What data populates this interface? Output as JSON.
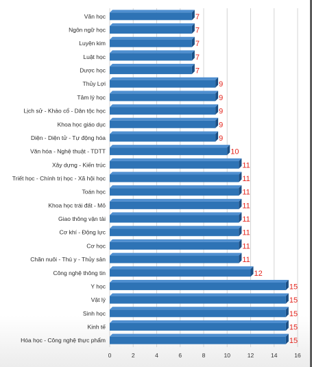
{
  "colors": {
    "bar": "#2e73b5",
    "bar_top": "#4f8fd0",
    "bar_side": "#1b4f85",
    "value_label": "#e3231b",
    "grid": "#d4d4d4"
  },
  "chart_data": {
    "type": "bar",
    "orientation": "horizontal",
    "categories": [
      "Văn học",
      "Ngôn ngữ học",
      "Luyện kim",
      "Luật học",
      "Dược học",
      "Thủy Lợi",
      "Tâm lý học",
      "Lịch sử - Khảo cổ - Dân tộc học",
      "Khoa học giáo dục",
      "Diện - Diện tử - Tự động hóa",
      "Văn hóa - Nghệ thuật - TDTT",
      "Xây dựng - Kiến trúc",
      "Triết học - Chính trị học - Xã hội học",
      "Toán học",
      "Khoa học trái đất - Mỏ",
      "Giao thông vận tải",
      "Cơ khí  - Động lực",
      "Cơ học",
      "Chăn nuôi - Thú y - Thủy sản",
      "Công nghệ thông tin",
      "Y học",
      "Vật lý",
      "Sinh học",
      "Kinh tế",
      "Hóa học - Công nghệ thực phẩm"
    ],
    "values": [
      7,
      7,
      7,
      7,
      7,
      9,
      9,
      9,
      9,
      9,
      10,
      11,
      11,
      11,
      11,
      11,
      11,
      11,
      11,
      12,
      15,
      15,
      15,
      15,
      15
    ],
    "data_labels": [
      "7",
      "7",
      "7",
      "7",
      "7",
      "9",
      "9",
      "9",
      "9",
      "9",
      "10",
      "11",
      "11",
      "11",
      "11",
      "11",
      "11",
      "11",
      "11",
      "12",
      "15",
      "15",
      "15",
      "15",
      "15"
    ],
    "xticks": [
      "0",
      "2",
      "4",
      "6",
      "8",
      "10",
      "12",
      "14",
      "16"
    ],
    "xlim": [
      0,
      16
    ],
    "grid": true,
    "title": "",
    "xlabel": "",
    "ylabel": ""
  }
}
